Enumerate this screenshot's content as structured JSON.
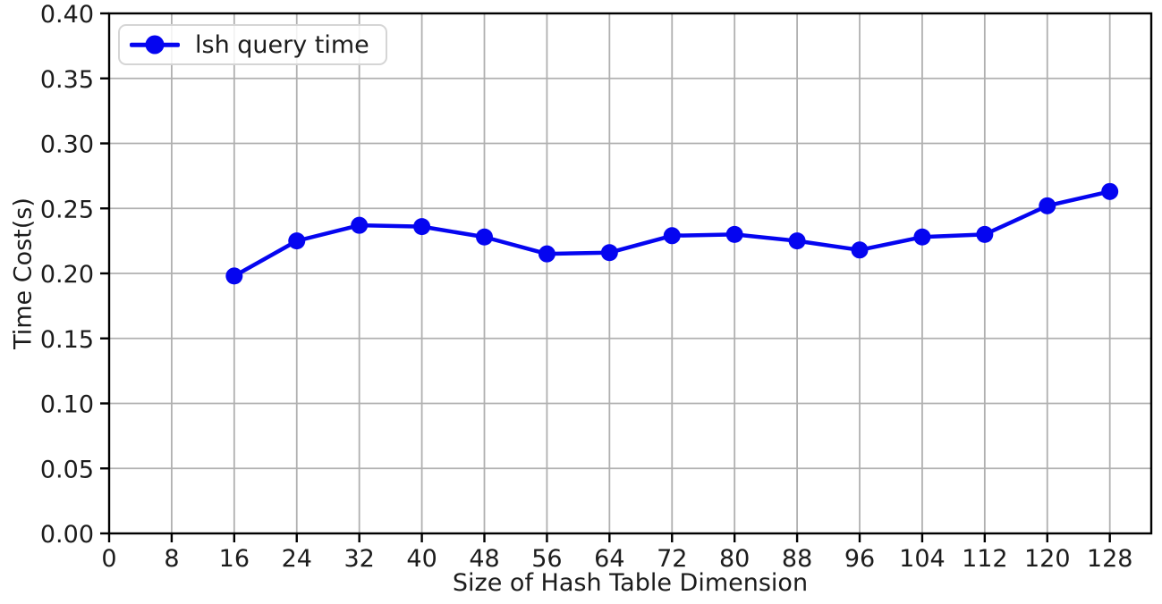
{
  "chart_data": {
    "type": "line",
    "title": "",
    "xlabel": "Size of Hash Table Dimension",
    "ylabel": "Time Cost(s)",
    "xlim": [
      0,
      133.3
    ],
    "ylim": [
      0,
      0.4
    ],
    "xticks": [
      0,
      8,
      16,
      24,
      32,
      40,
      48,
      56,
      64,
      72,
      80,
      88,
      96,
      104,
      112,
      120,
      128
    ],
    "yticks": [
      0,
      0.05,
      0.1,
      0.15,
      0.2,
      0.25,
      0.3,
      0.35,
      0.4
    ],
    "ytick_decimals": 2,
    "grid": true,
    "legend_position": "upper-left",
    "series": [
      {
        "name": "lsh query time",
        "color": "#0505f0",
        "marker": "circle",
        "x": [
          16,
          24,
          32,
          40,
          48,
          56,
          64,
          72,
          80,
          88,
          96,
          104,
          112,
          120,
          128
        ],
        "y": [
          0.198,
          0.225,
          0.237,
          0.236,
          0.228,
          0.215,
          0.216,
          0.229,
          0.23,
          0.225,
          0.218,
          0.228,
          0.23,
          0.252,
          0.263
        ]
      }
    ]
  },
  "colors": {
    "background": "#ffffff",
    "grid": "#b0b0b0",
    "spine": "#000000",
    "tick": "#000000",
    "text": "#1c1c1c",
    "legend_border": "#d5d5d5",
    "series_blue": "#0505f0"
  }
}
